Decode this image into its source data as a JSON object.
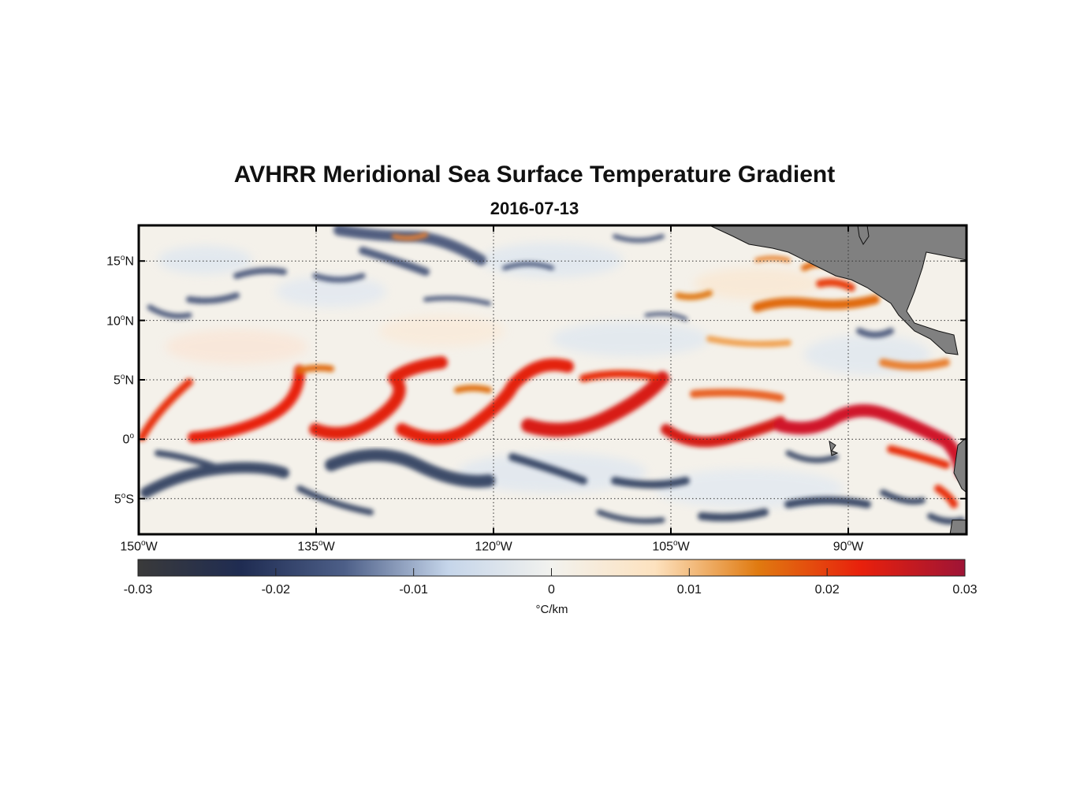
{
  "title": "AVHRR Meridional Sea Surface Temperature Gradient",
  "date": "2016-07-13",
  "map": {
    "lon_range": [
      -150,
      -80
    ],
    "lat_range": [
      -8,
      18
    ],
    "lat_ticks": [
      {
        "value": 15,
        "num": "15",
        "hem": "N"
      },
      {
        "value": 10,
        "num": "10",
        "hem": "N"
      },
      {
        "value": 5,
        "num": "5",
        "hem": "N"
      },
      {
        "value": 0,
        "num": "0",
        "hem": ""
      },
      {
        "value": -5,
        "num": "5",
        "hem": "S"
      }
    ],
    "lon_ticks": [
      {
        "value": -150,
        "num": "150",
        "hem": "W"
      },
      {
        "value": -135,
        "num": "135",
        "hem": "W"
      },
      {
        "value": -120,
        "num": "120",
        "hem": "W"
      },
      {
        "value": -105,
        "num": "105",
        "hem": "W"
      },
      {
        "value": -90,
        "num": "90",
        "hem": "W"
      }
    ],
    "land_color": "#808080"
  },
  "colorbar": {
    "range": [
      -0.03,
      0.03
    ],
    "tick_labels": [
      "-0.03",
      "-0.02",
      "-0.01",
      "0",
      "0.01",
      "0.02",
      "0.03"
    ],
    "units": "°C/km",
    "colors": [
      "#3a3a3a",
      "#1f2c52",
      "#4d5f88",
      "#c5d5ea",
      "#f2f2ee",
      "#fde2bf",
      "#e07a10",
      "#e8200c",
      "#9e1436"
    ]
  }
}
